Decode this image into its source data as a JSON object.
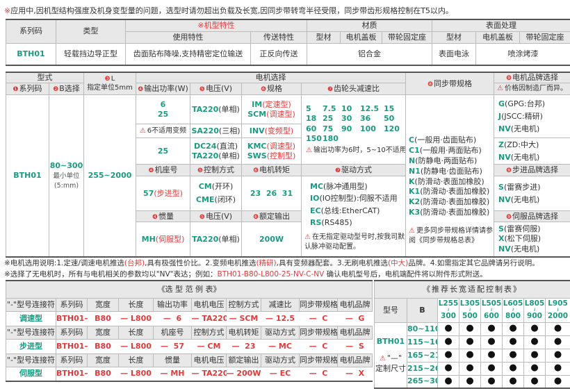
{
  "top_note": {
    "mark": "※",
    "text": "应用中,因机型结构强度及机身变型量的问题，选型时请勿超出负载及长宽,因同步带转弯半径受限，同步带齿形规格控制在T5以内。"
  },
  "t1": {
    "series_code": "系列码",
    "type": "类型",
    "features": "※机型特性",
    "use": "使用特性",
    "transfer": "传送特性",
    "material": "材质",
    "surface": "表面处理",
    "profile": "型材",
    "motor_cover": "电机盖板",
    "pulley_seat": "带轮固定座",
    "row": {
      "series": "BTH01",
      "type": "轻载挡边导正型",
      "use": "齿面贴布降噪,支持精密定位输送",
      "transfer": "正反向传送",
      "material": "铝合金",
      "surface_profile": "表面电泳",
      "surface_other": "喷涂烤漆"
    }
  },
  "t2": {
    "model": "型式",
    "l_num": "❸",
    "l": "L",
    "l_unit": "指定单位5mm",
    "motor_sel": "电机选择",
    "belt_num": "❽",
    "belt": "同步带规格",
    "brand_num": "❾",
    "brand": "电机品牌选择",
    "h_series": {
      "num": "❶",
      "text": "系列码"
    },
    "h_b": {
      "num": "❷",
      "text": "B选择"
    },
    "h_power": {
      "num": "❹",
      "text": "输出功率(W)"
    },
    "h_voltage": {
      "num": "❺",
      "text": "电压(V)"
    },
    "h_spec": {
      "num": "❻",
      "text": "规格"
    },
    "h_ratio": {
      "num": "❼",
      "text": "齿轮头减速比"
    },
    "price_note": "价格因制造厂而异。",
    "series": "BTH01",
    "b_range": "80~300",
    "b_unit1": "最小单位",
    "b_unit2": "(5:mm)",
    "l_range": "255~2000",
    "p1a": "6",
    "p1b": "25",
    "p2": "6不适用变频",
    "p3": "25",
    "v1": {
      "code": "TA220",
      "desc": "(单相)"
    },
    "v2": {
      "code": "SA220",
      "desc": "(三相)"
    },
    "v3a": {
      "code": "DC24",
      "desc": "(直流)"
    },
    "v3b": {
      "code": "TA220",
      "desc": "(单相)"
    },
    "s1a": {
      "code": "IM",
      "desc": "(定速型)"
    },
    "s1b": {
      "code": "SCM",
      "desc": "(调速型)"
    },
    "s2": {
      "code": "INV",
      "desc": "(变频型)"
    },
    "s3a": {
      "code": "KMC",
      "desc": "(调速型)"
    },
    "s3b": {
      "code": "SWS",
      "desc": "(控制型)"
    },
    "ratios": [
      [
        "5",
        "7.5",
        "10",
        "12.5",
        "15"
      ],
      [
        "18",
        "25",
        "30",
        "36",
        "50"
      ],
      [
        "60",
        "75",
        "90",
        "100",
        "120"
      ],
      [
        "150",
        "180"
      ]
    ],
    "ratio_note": "输出功率为6时，5~10不适用。",
    "h_frame": {
      "num": "❹",
      "text": "机座号"
    },
    "h_control": {
      "num": "❺",
      "text": "控制方式"
    },
    "h_torque": {
      "num": "❻",
      "text": "电机转矩"
    },
    "h_drive": {
      "num": "❼",
      "text": "驱动方式"
    },
    "frame": {
      "code": "57",
      "desc": "(步进型)"
    },
    "c1": {
      "code": "CM",
      "desc": "(开环)"
    },
    "c2": {
      "code": "CME",
      "desc": "(闭环)"
    },
    "torque": "23  26  31",
    "drives": [
      {
        "code": "MC",
        "desc": "(脉冲通用型)"
      },
      {
        "code": "IO",
        "desc": "(IO控制型):伺服不适用"
      },
      {
        "code": "EC",
        "desc": "(总线:EtherCAT)"
      },
      {
        "code": "RS",
        "desc": "(RS485)"
      }
    ],
    "drive_note": "在无指定驱动型号时,按我司默认脉冲驱动配置。",
    "h_inertia": {
      "num": "❹",
      "text": "惯量"
    },
    "h_voltage2": {
      "num": "❺",
      "text": "电压(V)"
    },
    "h_rated": {
      "num": "❻",
      "text": "额定输出"
    },
    "inertia": {
      "code": "MH",
      "desc": "(伺服型)"
    },
    "v4": {
      "code": "TA220",
      "desc": "(单相)"
    },
    "rated": "200W",
    "belts": [
      {
        "code": "C",
        "desc": "(一般用·齿面贴布)"
      },
      {
        "code": "C1",
        "desc": "(一般用·两面贴布)"
      },
      {
        "code": "N",
        "desc": "(防静电·两面贴布)"
      },
      {
        "code": "N1",
        "desc": "(防静电·齿面贴布)"
      },
      {
        "code": "K",
        "desc": "(防滑动·表面加橡胶)"
      },
      {
        "code": "K1",
        "desc": "(防滑动·表面加橡胶)"
      },
      {
        "code": "K2",
        "desc": "(防滑动·表面加橡胶)"
      },
      {
        "code": "K3",
        "desc": "(防滑动·表面加橡胶)"
      }
    ],
    "belt_note": "更多同步带规格详情请参阅《同步带规格总表》",
    "brands1": [
      {
        "code": "G",
        "desc": "(GPG:台邦)"
      },
      {
        "code": "J",
        "desc": "(JSCC:精研)"
      },
      {
        "code": "NV",
        "desc": "(无电机)"
      }
    ],
    "brands2": [
      {
        "code": "Z",
        "desc": "(ZD:中大)"
      },
      {
        "code": "NV",
        "desc": "(无电机)"
      }
    ],
    "stepper_brand": {
      "num": "❾",
      "text": "步进品牌选择"
    },
    "brands3": [
      {
        "code": "S",
        "desc": "(雷赛步进)"
      },
      {
        "code": "NV",
        "desc": "(无电机)"
      }
    ],
    "servo_brand": {
      "num": "❾",
      "text": "伺服品牌选择"
    },
    "brands4": [
      {
        "code": "S",
        "desc": "(雷赛伺服)"
      },
      {
        "code": "X",
        "desc": "(松下伺服)"
      },
      {
        "code": "NV",
        "desc": "(无电机)"
      }
    ]
  },
  "notes": {
    "n1": {
      "a": "※电机选用说明:1.定速/调速电机推选",
      "b": "(台邦)",
      "c": ",具有极强性价比。2.变频电机推选",
      "d": "(精研)",
      "e": ",具有变频器配套。3.无刷电机推选",
      "f": "(中大)",
      "g": "品牌。4.如需指定其它品牌请另行说明。"
    },
    "n2": {
      "a": "※选择了无电机时，所有与电机相关的参数均以\"NV\"表达；例如：",
      "b": "BTH01-B80-L800-25-NV-C-NV",
      "c": "  确认电机型号后，电机端配件将以附件形式附送。"
    }
  },
  "example": {
    "title": "《选 型 范 例 表》",
    "groups": [
      {
        "headers": [
          "\"-\"型号连接符",
          "系列码",
          "宽度",
          "长度",
          "输出功率",
          "电机电压",
          "控制方式",
          "减速比",
          "同步带规格",
          "电机品牌"
        ],
        "type": "调速型",
        "values": [
          "BTH01—",
          "B80",
          "— L800",
          "—  6",
          "— TA220",
          "— SCM",
          "— 12.5",
          "—  C",
          "—  G"
        ]
      },
      {
        "headers": [
          "\"-\"型号连接符",
          "系列码",
          "宽度",
          "长度",
          "机座号",
          "控制方式",
          "电机转矩",
          "驱动方式",
          "同步带规格",
          "电机品牌"
        ],
        "type": "步进型",
        "values": [
          "BTH01—",
          "B80",
          "— L800",
          "—  57",
          "— CM",
          "—  23",
          "— MC",
          "—  C",
          "—  S"
        ]
      },
      {
        "headers": [
          "\"-\"型号连接符",
          "系列码",
          "宽度",
          "长度",
          "惯量",
          "电机电压",
          "额定输出",
          "驱动方式",
          "同步带规格",
          "电机品牌"
        ],
        "type": "伺服型",
        "values": [
          "BTH01—",
          "B80",
          "— L800",
          "— MH",
          "— TA220",
          "— 200W",
          "— EC",
          "—  C",
          "—  X"
        ]
      }
    ]
  },
  "recommend": {
    "title": "《推荐长宽适配控制表》",
    "model": "型号",
    "b": "B",
    "lengths": [
      [
        "L255",
        "300"
      ],
      [
        "L305",
        "500"
      ],
      [
        "L505",
        "600"
      ],
      [
        "L605",
        "800"
      ],
      [
        "L805",
        "900"
      ],
      [
        "L905",
        "2000"
      ]
    ],
    "series": "BTH01",
    "custom_mark": "\"—\"",
    "custom": "定制尺寸",
    "widths": [
      "80~110",
      "115~160",
      "165~210",
      "215~260",
      "265~300"
    ],
    "available_mark": "●",
    "matrix": [
      [
        1,
        1,
        1,
        1,
        1,
        1
      ],
      [
        1,
        1,
        1,
        1,
        1,
        1
      ],
      [
        1,
        1,
        1,
        1,
        1,
        1
      ],
      [
        1,
        1,
        1,
        1,
        1,
        1
      ],
      [
        1,
        1,
        1,
        1,
        1,
        1
      ]
    ]
  },
  "colors": {
    "green": "#1a9a80",
    "red": "#e03a3a",
    "header_bg": "#e8e8e8"
  }
}
